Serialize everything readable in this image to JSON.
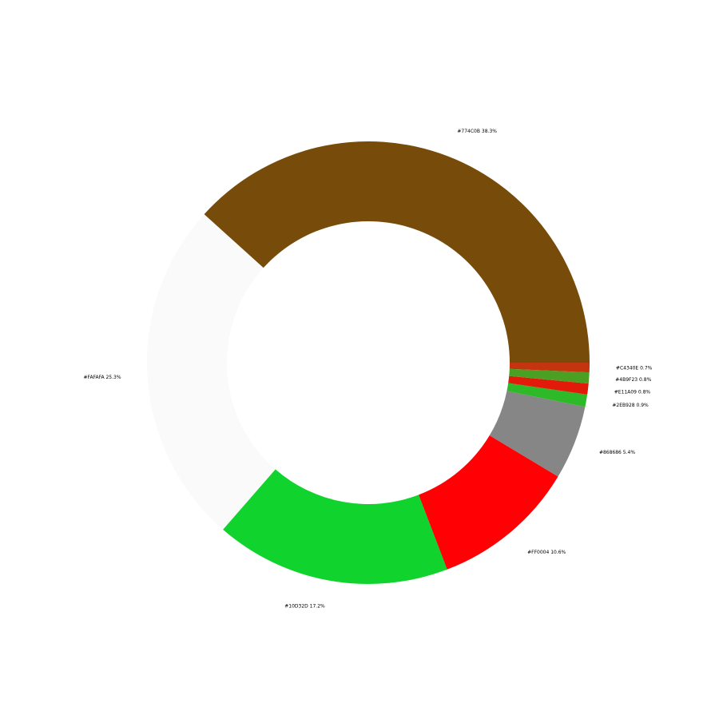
{
  "chart_data": {
    "type": "pie",
    "subtype": "donut",
    "title": "",
    "start": "east, counterclockwise",
    "slices": [
      {
        "label": "#774C0B 38.3%",
        "color": "#774C0B",
        "value": 38.3
      },
      {
        "label": "#FAFAFA 25.3%",
        "color": "#FAFAFA",
        "value": 25.3
      },
      {
        "label": "#10D32D 17.2%",
        "color": "#10D32D",
        "value": 17.2
      },
      {
        "label": "#FF0004 10.6%",
        "color": "#FF0004",
        "value": 10.6
      },
      {
        "label": "#868686 5.4%",
        "color": "#868686",
        "value": 5.4
      },
      {
        "label": "#2EB928 0.9%",
        "color": "#2EB928",
        "value": 0.9
      },
      {
        "label": "#E11A09 0.8%",
        "color": "#E11A09",
        "value": 0.8
      },
      {
        "label": "#4B9F23 0.8%",
        "color": "#4B9F23",
        "value": 0.8
      },
      {
        "label": "#C4340E 0.7%",
        "color": "#C4340E",
        "value": 0.7
      }
    ]
  }
}
